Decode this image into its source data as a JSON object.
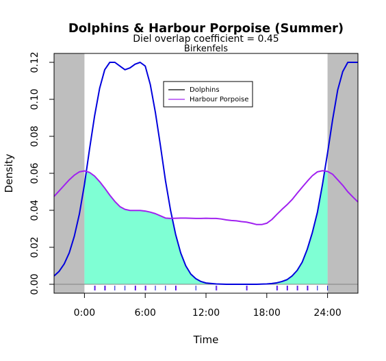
{
  "chart_data": {
    "type": "line",
    "title": "Dolphins & Harbour Porpoise (Summer)",
    "subtitle": "Diel overlap coefficient =  0.45",
    "subtitle2": "Birkenfels",
    "xlabel": "Time",
    "ylabel": "Density",
    "xlim": [
      -3,
      27
    ],
    "ylim": [
      0,
      0.12
    ],
    "x_ticks": [
      0,
      6,
      12,
      18,
      24
    ],
    "x_tick_labels": [
      "0:00",
      "6:00",
      "12:00",
      "18:00",
      "24:00"
    ],
    "y_ticks": [
      0,
      0.02,
      0.04,
      0.06,
      0.08,
      0.1,
      0.12
    ],
    "y_tick_labels": [
      "0.00",
      "0.02",
      "0.04",
      "0.06",
      "0.08",
      "0.10",
      "0.12"
    ],
    "night_shading": [
      [
        -3,
        0
      ],
      [
        24,
        27
      ]
    ],
    "legend_position": "top-center",
    "colors": {
      "dolphins": "#0000dd",
      "porpoise": "#a020f0",
      "overlap": "#7fffd4",
      "night": "#bebebe"
    },
    "series": [
      {
        "name": "Dolphins",
        "legend_color": "#000000",
        "color": "#0000dd",
        "x": [
          -3,
          -2.5,
          -2,
          -1.5,
          -1,
          -0.5,
          0,
          0.5,
          1,
          1.5,
          2,
          2.5,
          3,
          3.5,
          4,
          4.5,
          5,
          5.5,
          6,
          6.5,
          7,
          7.5,
          8,
          8.5,
          9,
          9.5,
          10,
          10.5,
          11,
          11.5,
          12,
          13,
          14,
          15,
          16,
          17,
          18,
          18.5,
          19,
          19.5,
          20,
          20.5,
          21,
          21.5,
          22,
          22.5,
          23,
          23.5,
          24,
          24.5,
          25,
          25.5,
          26,
          26.5,
          27
        ],
        "y": [
          0.0045,
          0.007,
          0.011,
          0.017,
          0.026,
          0.038,
          0.054,
          0.073,
          0.091,
          0.106,
          0.116,
          0.12,
          0.12,
          0.118,
          0.116,
          0.117,
          0.119,
          0.12,
          0.118,
          0.108,
          0.093,
          0.075,
          0.056,
          0.04,
          0.027,
          0.017,
          0.01,
          0.0055,
          0.003,
          0.0015,
          0.0007,
          0.0002,
          0.0,
          0.0,
          0.0,
          0.0,
          0.0002,
          0.0004,
          0.0008,
          0.0015,
          0.0025,
          0.0045,
          0.0075,
          0.012,
          0.019,
          0.028,
          0.039,
          0.054,
          0.071,
          0.089,
          0.105,
          0.115,
          0.12,
          0.12,
          0.12
        ]
      },
      {
        "name": "Harbour Porpoise",
        "legend_color": "#a020f0",
        "color": "#a020f0",
        "x": [
          -3,
          -2.5,
          -2,
          -1.5,
          -1,
          -0.5,
          0,
          0.5,
          1,
          1.5,
          2,
          2.5,
          3,
          3.5,
          4,
          4.5,
          5,
          5.5,
          6,
          6.5,
          7,
          7.5,
          8,
          8.5,
          9,
          9.5,
          10,
          10.5,
          11,
          11.5,
          12,
          12.5,
          13,
          13.5,
          14,
          14.5,
          15,
          15.5,
          16,
          16.5,
          17,
          17.5,
          18,
          18.5,
          19,
          19.5,
          20,
          20.5,
          21,
          21.5,
          22,
          22.5,
          23,
          23.5,
          24,
          24.5,
          25,
          25.5,
          26,
          26.5,
          27
        ],
        "y": [
          0.0475,
          0.0505,
          0.0535,
          0.0565,
          0.059,
          0.0608,
          0.0613,
          0.0605,
          0.0585,
          0.0555,
          0.052,
          0.0482,
          0.0448,
          0.042,
          0.0405,
          0.0399,
          0.0399,
          0.0399,
          0.0396,
          0.039,
          0.0382,
          0.037,
          0.0358,
          0.0356,
          0.0357,
          0.0358,
          0.0358,
          0.0357,
          0.0356,
          0.0356,
          0.0357,
          0.0356,
          0.0356,
          0.0353,
          0.0348,
          0.0345,
          0.0343,
          0.0339,
          0.0336,
          0.033,
          0.0323,
          0.0323,
          0.033,
          0.035,
          0.0378,
          0.0405,
          0.043,
          0.0458,
          0.0492,
          0.0525,
          0.0557,
          0.0587,
          0.0608,
          0.0614,
          0.061,
          0.0595,
          0.0565,
          0.0535,
          0.05,
          0.0472,
          0.0445
        ]
      }
    ],
    "rug": {
      "dolphins_x": [
        1.0,
        2.0,
        3.0,
        4.0,
        5.0,
        6.0,
        7.0,
        8.0,
        9.0,
        11.0,
        13.0,
        16.0,
        19.0,
        20.0,
        21.0,
        22.0,
        23.0,
        24.0
      ],
      "porpoise_x": [
        1.0,
        2.0,
        5.0,
        6.0,
        9.0,
        13.0,
        16.0,
        19.0,
        20.0,
        21.0,
        22.0
      ]
    }
  }
}
